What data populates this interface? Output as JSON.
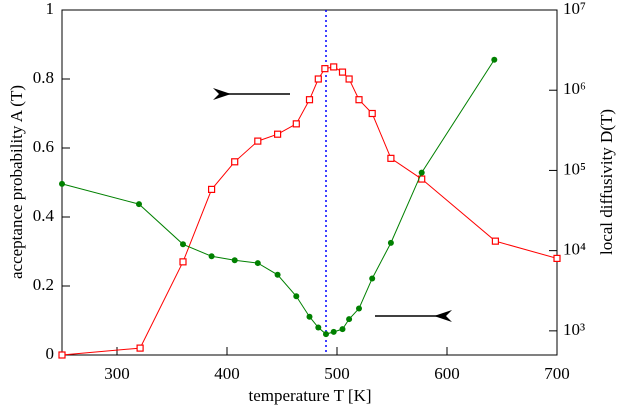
{
  "chart_data": {
    "type": "line",
    "xlabel": "temperature T [K]",
    "ylabel": "acceptance probability A (T)",
    "y2label": "local diffusivity D(T)",
    "xlim": [
      250,
      700
    ],
    "xticks": [
      300,
      400,
      500,
      600,
      700
    ],
    "ylim": [
      0,
      1
    ],
    "yticks": [
      0,
      0.2,
      0.4,
      0.6,
      0.8,
      1
    ],
    "y2lim": [
      500,
      10000000
    ],
    "y2scale": "log",
    "y2ticks": [
      {
        "value": 1000,
        "label": "10³"
      },
      {
        "value": 10000,
        "label": "10⁴"
      },
      {
        "value": 100000,
        "label": "10⁵"
      },
      {
        "value": 1000000,
        "label": "10⁶"
      },
      {
        "value": 10000000,
        "label": "10⁷"
      }
    ],
    "vline": {
      "x": 490,
      "color": "#0000ff"
    },
    "series": [
      {
        "color": "#ff0000",
        "marker": "square",
        "x": [
          250,
          321,
          360,
          386,
          407,
          428,
          446,
          463,
          475,
          483,
          489,
          497,
          505,
          511,
          520,
          532,
          549,
          577,
          644,
          700
        ],
        "values": [
          0,
          0.02,
          0.27,
          0.48,
          0.56,
          0.62,
          0.64,
          0.67,
          0.74,
          0.8,
          0.83,
          0.835,
          0.82,
          0.8,
          0.74,
          0.7,
          0.57,
          0.51,
          0.33,
          0.28
        ]
      },
      {
        "color": "#008000",
        "marker": "circle",
        "axis": "y2",
        "x": [
          250,
          320,
          360,
          386,
          407,
          428,
          446,
          463,
          475,
          483,
          490,
          497,
          505,
          511,
          520,
          532,
          549,
          577,
          643
        ],
        "values": [
          68000,
          38000,
          12000,
          8500,
          7600,
          7000,
          5000,
          2700,
          1500,
          1100,
          910,
          970,
          1050,
          1400,
          1900,
          4500,
          12500,
          94000,
          2400000
        ]
      }
    ]
  }
}
